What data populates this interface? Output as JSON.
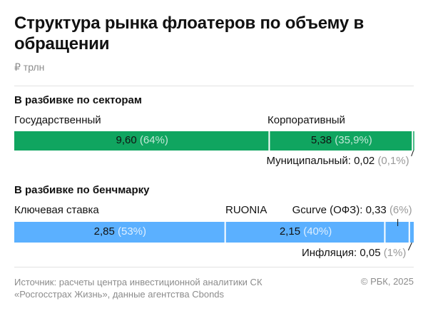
{
  "title": "Структура рынка флоатеров по объему в обращении",
  "units": "₽ трлн",
  "source": "Источник: расчеты центра инвестиционной аналитики СК «Росгосстрах Жизнь», данные агентства Cbonds",
  "copyright": "© РБК, 2025",
  "colors": {
    "sector": "#10a560",
    "benchmark": "#5bb0ff",
    "text": "#111111",
    "muted": "#8c8c8c"
  },
  "chart_data": [
    {
      "type": "bar",
      "stacked": true,
      "orientation": "horizontal",
      "title": "В разбивке по секторам",
      "unit": "₽ трлн",
      "series": [
        {
          "name": "Государственный",
          "value": 9.6,
          "value_label": "9,60",
          "share_label": "(64%)",
          "share": 64
        },
        {
          "name": "Корпоративный",
          "value": 5.38,
          "value_label": "5,38",
          "share_label": "(35,9%)",
          "share": 35.9
        },
        {
          "name": "Муниципальный:",
          "value": 0.02,
          "value_label": "0,02",
          "share_label": "(0,1%)",
          "share": 0.1
        }
      ]
    },
    {
      "type": "bar",
      "stacked": true,
      "orientation": "horizontal",
      "title": "В разбивке по бенчмарку",
      "unit": "₽ трлн",
      "series": [
        {
          "name": "Ключевая ставка",
          "value": 2.85,
          "value_label": "2,85",
          "share_label": "(53%)",
          "share": 53
        },
        {
          "name": "RUONIA",
          "value": 2.15,
          "value_label": "2,15",
          "share_label": "(40%)",
          "share": 40
        },
        {
          "name": "Gcurve (ОФЗ):",
          "value": 0.33,
          "value_label": "0,33",
          "share_label": "(6%)",
          "share": 6
        },
        {
          "name": "Инфляция:",
          "value": 0.05,
          "value_label": "0,05",
          "share_label": "(1%)",
          "share": 1
        }
      ]
    }
  ]
}
